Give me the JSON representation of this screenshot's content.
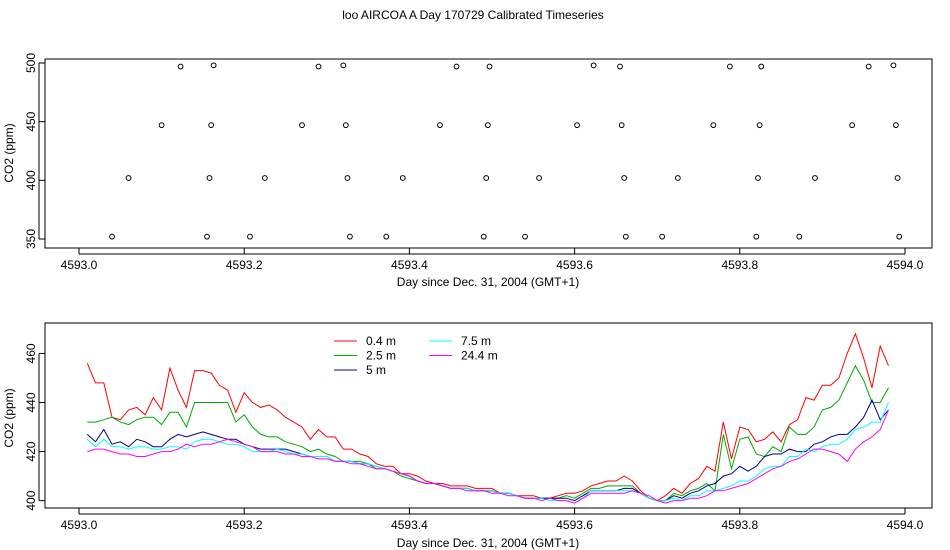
{
  "chart_data": [
    {
      "type": "scatter+line",
      "title": "loo AIRCOA A  Day 170729  Calibrated Timeseries",
      "xlabel": "Day since Dec. 31, 2004 (GMT+1)",
      "ylabel": "CO2 (ppm)",
      "xlim": [
        4593.0,
        4594.0
      ],
      "ylim": [
        350,
        500
      ],
      "xticks": [
        4593.0,
        4593.2,
        4593.4,
        4593.6,
        4593.8,
        4594.0
      ],
      "xtick_labels": [
        "4593.0",
        "4593.2",
        "4593.4",
        "4593.6",
        "4593.8",
        "4594.0"
      ],
      "yticks": [
        350,
        400,
        450,
        500
      ],
      "ytick_labels": [
        "350",
        "400",
        "450",
        "500"
      ],
      "points": [
        [
          4593.04,
          352
        ],
        [
          4593.06,
          402
        ],
        [
          4593.1,
          447
        ],
        [
          4593.123,
          497
        ],
        [
          4593.155,
          352
        ],
        [
          4593.158,
          402
        ],
        [
          4593.16,
          447
        ],
        [
          4593.163,
          498
        ],
        [
          4593.207,
          352
        ],
        [
          4593.225,
          402
        ],
        [
          4593.27,
          447
        ],
        [
          4593.29,
          497
        ],
        [
          4593.32,
          498
        ],
        [
          4593.323,
          447
        ],
        [
          4593.325,
          402
        ],
        [
          4593.328,
          352
        ],
        [
          4593.372,
          352
        ],
        [
          4593.392,
          402
        ],
        [
          4593.437,
          447
        ],
        [
          4593.457,
          497
        ],
        [
          4593.49,
          352
        ],
        [
          4593.493,
          402
        ],
        [
          4593.495,
          447
        ],
        [
          4593.497,
          497
        ],
        [
          4593.54,
          352
        ],
        [
          4593.557,
          402
        ],
        [
          4593.603,
          447
        ],
        [
          4593.623,
          498
        ],
        [
          4593.655,
          497
        ],
        [
          4593.657,
          447
        ],
        [
          4593.66,
          402
        ],
        [
          4593.662,
          352
        ],
        [
          4593.706,
          352
        ],
        [
          4593.725,
          402
        ],
        [
          4593.768,
          447
        ],
        [
          4593.788,
          497
        ],
        [
          4593.82,
          352
        ],
        [
          4593.822,
          402
        ],
        [
          4593.824,
          447
        ],
        [
          4593.826,
          497
        ],
        [
          4593.872,
          352
        ],
        [
          4593.891,
          402
        ],
        [
          4593.936,
          447
        ],
        [
          4593.956,
          497
        ],
        [
          4593.986,
          498
        ],
        [
          4593.989,
          447
        ],
        [
          4593.991,
          402
        ],
        [
          4593.993,
          352
        ]
      ]
    },
    {
      "type": "line",
      "title": "",
      "xlabel": "Day since Dec. 31, 2004 (GMT+1)",
      "ylabel": "CO2 (ppm)",
      "xlim": [
        4593.0,
        4594.0
      ],
      "ylim": [
        397,
        472
      ],
      "xticks": [
        4593.0,
        4593.2,
        4593.4,
        4593.6,
        4593.8,
        4594.0
      ],
      "xtick_labels": [
        "4593.0",
        "4593.2",
        "4593.4",
        "4593.6",
        "4593.8",
        "4594.0"
      ],
      "yticks": [
        400,
        420,
        440,
        460
      ],
      "ytick_labels": [
        "400",
        "420",
        "440",
        "460"
      ],
      "legend_position": "top-center",
      "x_start": 4593.01,
      "x_step": 0.01,
      "series": [
        {
          "name": "0.4 m",
          "color": "#ff0000",
          "legend_col": 0,
          "legend_row": 0,
          "values": [
            456,
            448,
            448,
            434,
            433,
            437,
            438,
            435,
            442,
            437,
            454,
            445,
            438,
            453,
            453,
            452,
            447,
            445,
            436,
            444,
            440,
            438,
            439,
            437,
            434,
            432,
            430,
            425,
            429,
            426,
            426,
            421,
            421,
            419,
            418,
            415,
            414,
            414,
            411,
            411,
            410,
            408,
            407,
            407,
            406,
            406,
            406,
            405,
            405,
            405,
            403,
            403,
            402,
            402,
            402,
            401,
            401,
            402,
            403,
            403,
            404,
            406,
            407,
            408,
            408,
            410,
            408,
            404,
            401,
            400,
            402,
            405,
            403,
            407,
            409,
            414,
            412,
            432,
            417,
            430,
            429,
            424,
            425,
            428,
            424,
            431,
            433,
            442,
            441,
            447,
            447,
            450,
            460,
            468,
            458,
            446,
            463,
            455
          ]
        },
        {
          "name": "2.5 m",
          "color": "#00aa00",
          "legend_col": 0,
          "legend_row": 1,
          "values": [
            432,
            432,
            433,
            434,
            432,
            431,
            433,
            434,
            434,
            431,
            436,
            436,
            430,
            440,
            440,
            440,
            440,
            440,
            432,
            435,
            430,
            427,
            426,
            426,
            424,
            423,
            422,
            420,
            421,
            419,
            418,
            416,
            416,
            416,
            415,
            413,
            413,
            412,
            410,
            409,
            408,
            407,
            407,
            406,
            405,
            405,
            405,
            404,
            404,
            404,
            403,
            403,
            402,
            401,
            401,
            401,
            401,
            401,
            402,
            401,
            403,
            405,
            405,
            406,
            406,
            406,
            406,
            403,
            401,
            400,
            400,
            403,
            402,
            404,
            405,
            407,
            404,
            427,
            413,
            425,
            426,
            419,
            418,
            422,
            420,
            430,
            427,
            427,
            430,
            437,
            438,
            441,
            448,
            455,
            449,
            440,
            440,
            446
          ]
        },
        {
          "name": "5 m",
          "color": "#00008b",
          "legend_col": 0,
          "legend_row": 2,
          "values": [
            427,
            424,
            429,
            423,
            424,
            422,
            425,
            424,
            422,
            422,
            425,
            427,
            426,
            427,
            428,
            427,
            426,
            425,
            425,
            423,
            422,
            421,
            421,
            421,
            421,
            420,
            419,
            418,
            418,
            418,
            416,
            416,
            416,
            415,
            415,
            414,
            413,
            412,
            411,
            410,
            408,
            407,
            407,
            406,
            405,
            405,
            405,
            404,
            404,
            404,
            403,
            403,
            402,
            401,
            401,
            401,
            401,
            401,
            401,
            400,
            402,
            404,
            404,
            404,
            404,
            405,
            405,
            403,
            401,
            400,
            400,
            402,
            401,
            403,
            404,
            406,
            407,
            410,
            411,
            414,
            412,
            414,
            418,
            419,
            419,
            421,
            420,
            420,
            423,
            424,
            426,
            427,
            427,
            430,
            434,
            441,
            433,
            437
          ]
        },
        {
          "name": "7.5 m",
          "color": "#00ffff",
          "legend_col": 1,
          "legend_row": 0,
          "values": [
            425,
            422,
            425,
            422,
            422,
            421,
            422,
            422,
            421,
            421,
            422,
            422,
            421,
            424,
            425,
            425,
            424,
            423,
            423,
            422,
            420,
            420,
            420,
            421,
            420,
            419,
            419,
            418,
            418,
            418,
            416,
            416,
            416,
            415,
            415,
            414,
            413,
            412,
            411,
            410,
            408,
            407,
            407,
            406,
            405,
            405,
            405,
            404,
            404,
            404,
            403,
            403,
            402,
            401,
            401,
            401,
            400,
            400,
            400,
            399,
            401,
            404,
            404,
            404,
            404,
            404,
            404,
            403,
            401,
            400,
            400,
            401,
            400,
            402,
            402,
            404,
            404,
            405,
            406,
            408,
            408,
            410,
            413,
            414,
            414,
            418,
            418,
            421,
            420,
            422,
            423,
            423,
            425,
            429,
            430,
            432,
            432,
            440
          ]
        },
        {
          "name": "24.4 m",
          "color": "#ff00ff",
          "legend_col": 1,
          "legend_row": 1,
          "values": [
            420,
            421,
            421,
            420,
            419,
            419,
            418,
            418,
            419,
            420,
            420,
            421,
            423,
            422,
            423,
            423,
            424,
            425,
            424,
            423,
            422,
            420,
            420,
            420,
            419,
            419,
            418,
            418,
            417,
            417,
            416,
            416,
            415,
            415,
            414,
            413,
            413,
            412,
            411,
            410,
            408,
            407,
            407,
            406,
            405,
            405,
            404,
            404,
            404,
            403,
            403,
            402,
            402,
            401,
            401,
            400,
            401,
            400,
            400,
            399,
            401,
            403,
            403,
            403,
            403,
            403,
            404,
            403,
            402,
            400,
            399,
            400,
            400,
            401,
            401,
            402,
            404,
            404,
            405,
            406,
            407,
            409,
            411,
            413,
            414,
            416,
            417,
            419,
            421,
            421,
            420,
            419,
            416,
            421,
            424,
            426,
            429,
            437
          ]
        }
      ]
    }
  ]
}
